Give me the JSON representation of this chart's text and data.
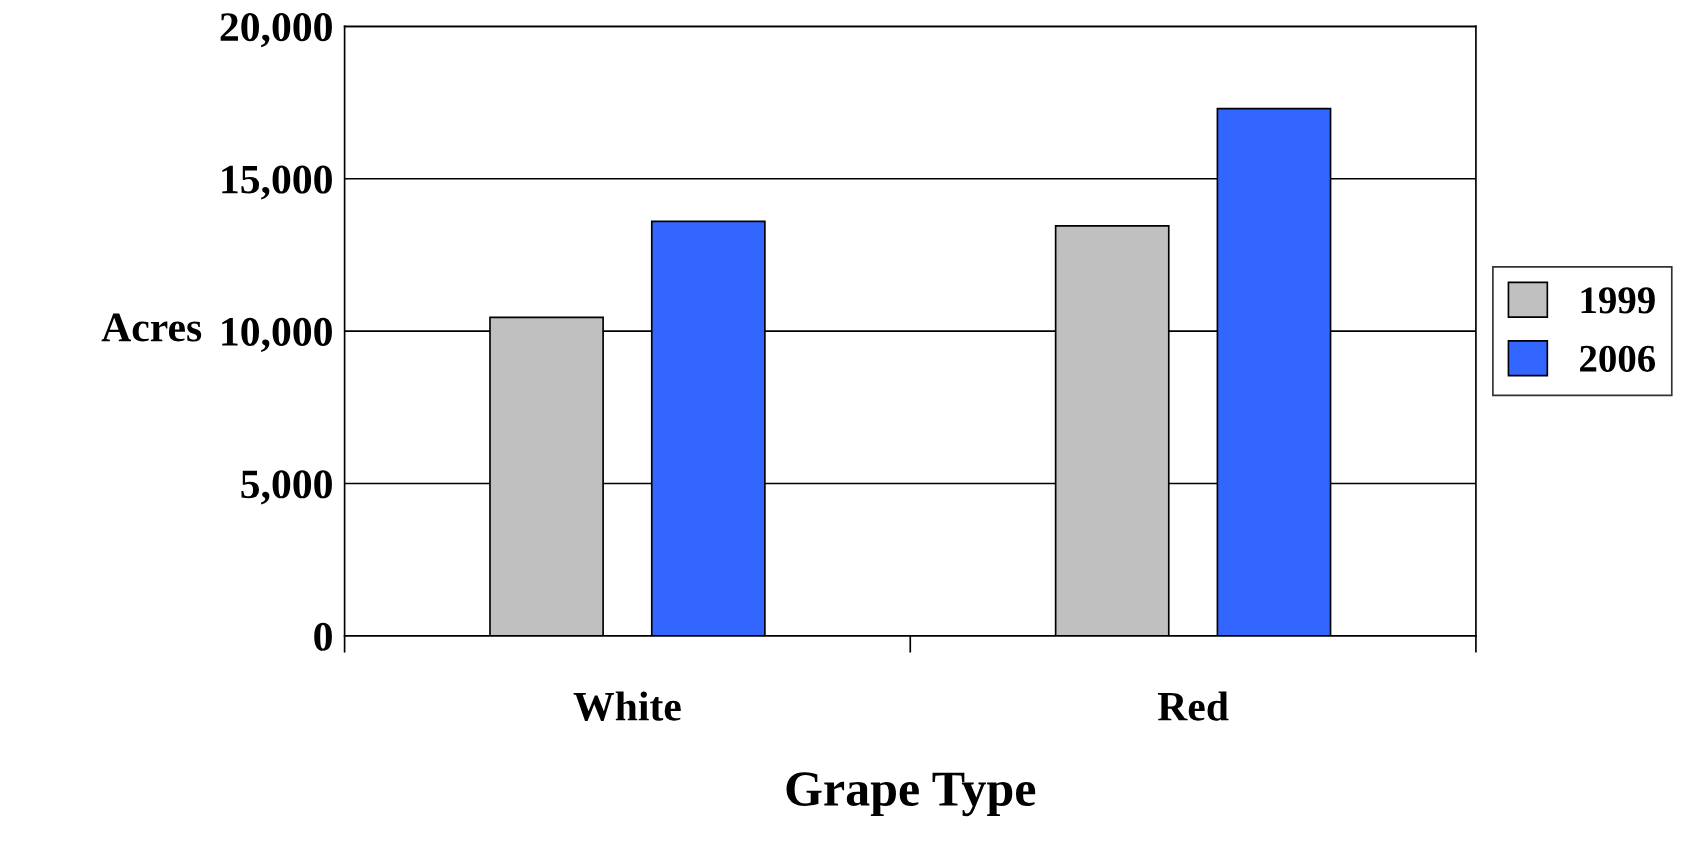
{
  "chart_data": {
    "type": "bar",
    "xlabel": "Grape Type",
    "ylabel": "Acres",
    "categories": [
      "White",
      "Red"
    ],
    "series": [
      {
        "name": "1999",
        "color": "#c0c0c0",
        "values": [
          10450,
          13450
        ]
      },
      {
        "name": "2006",
        "color": "#3366ff",
        "values": [
          13600,
          17300
        ]
      }
    ],
    "ylim": [
      0,
      20000
    ],
    "yticks": [
      {
        "value": 0,
        "label": "0"
      },
      {
        "value": 5000,
        "label": "5,000"
      },
      {
        "value": 10000,
        "label": "10,000"
      },
      {
        "value": 15000,
        "label": "15,000"
      },
      {
        "value": 20000,
        "label": "20,000"
      }
    ],
    "grid": "y",
    "legend": "right"
  }
}
